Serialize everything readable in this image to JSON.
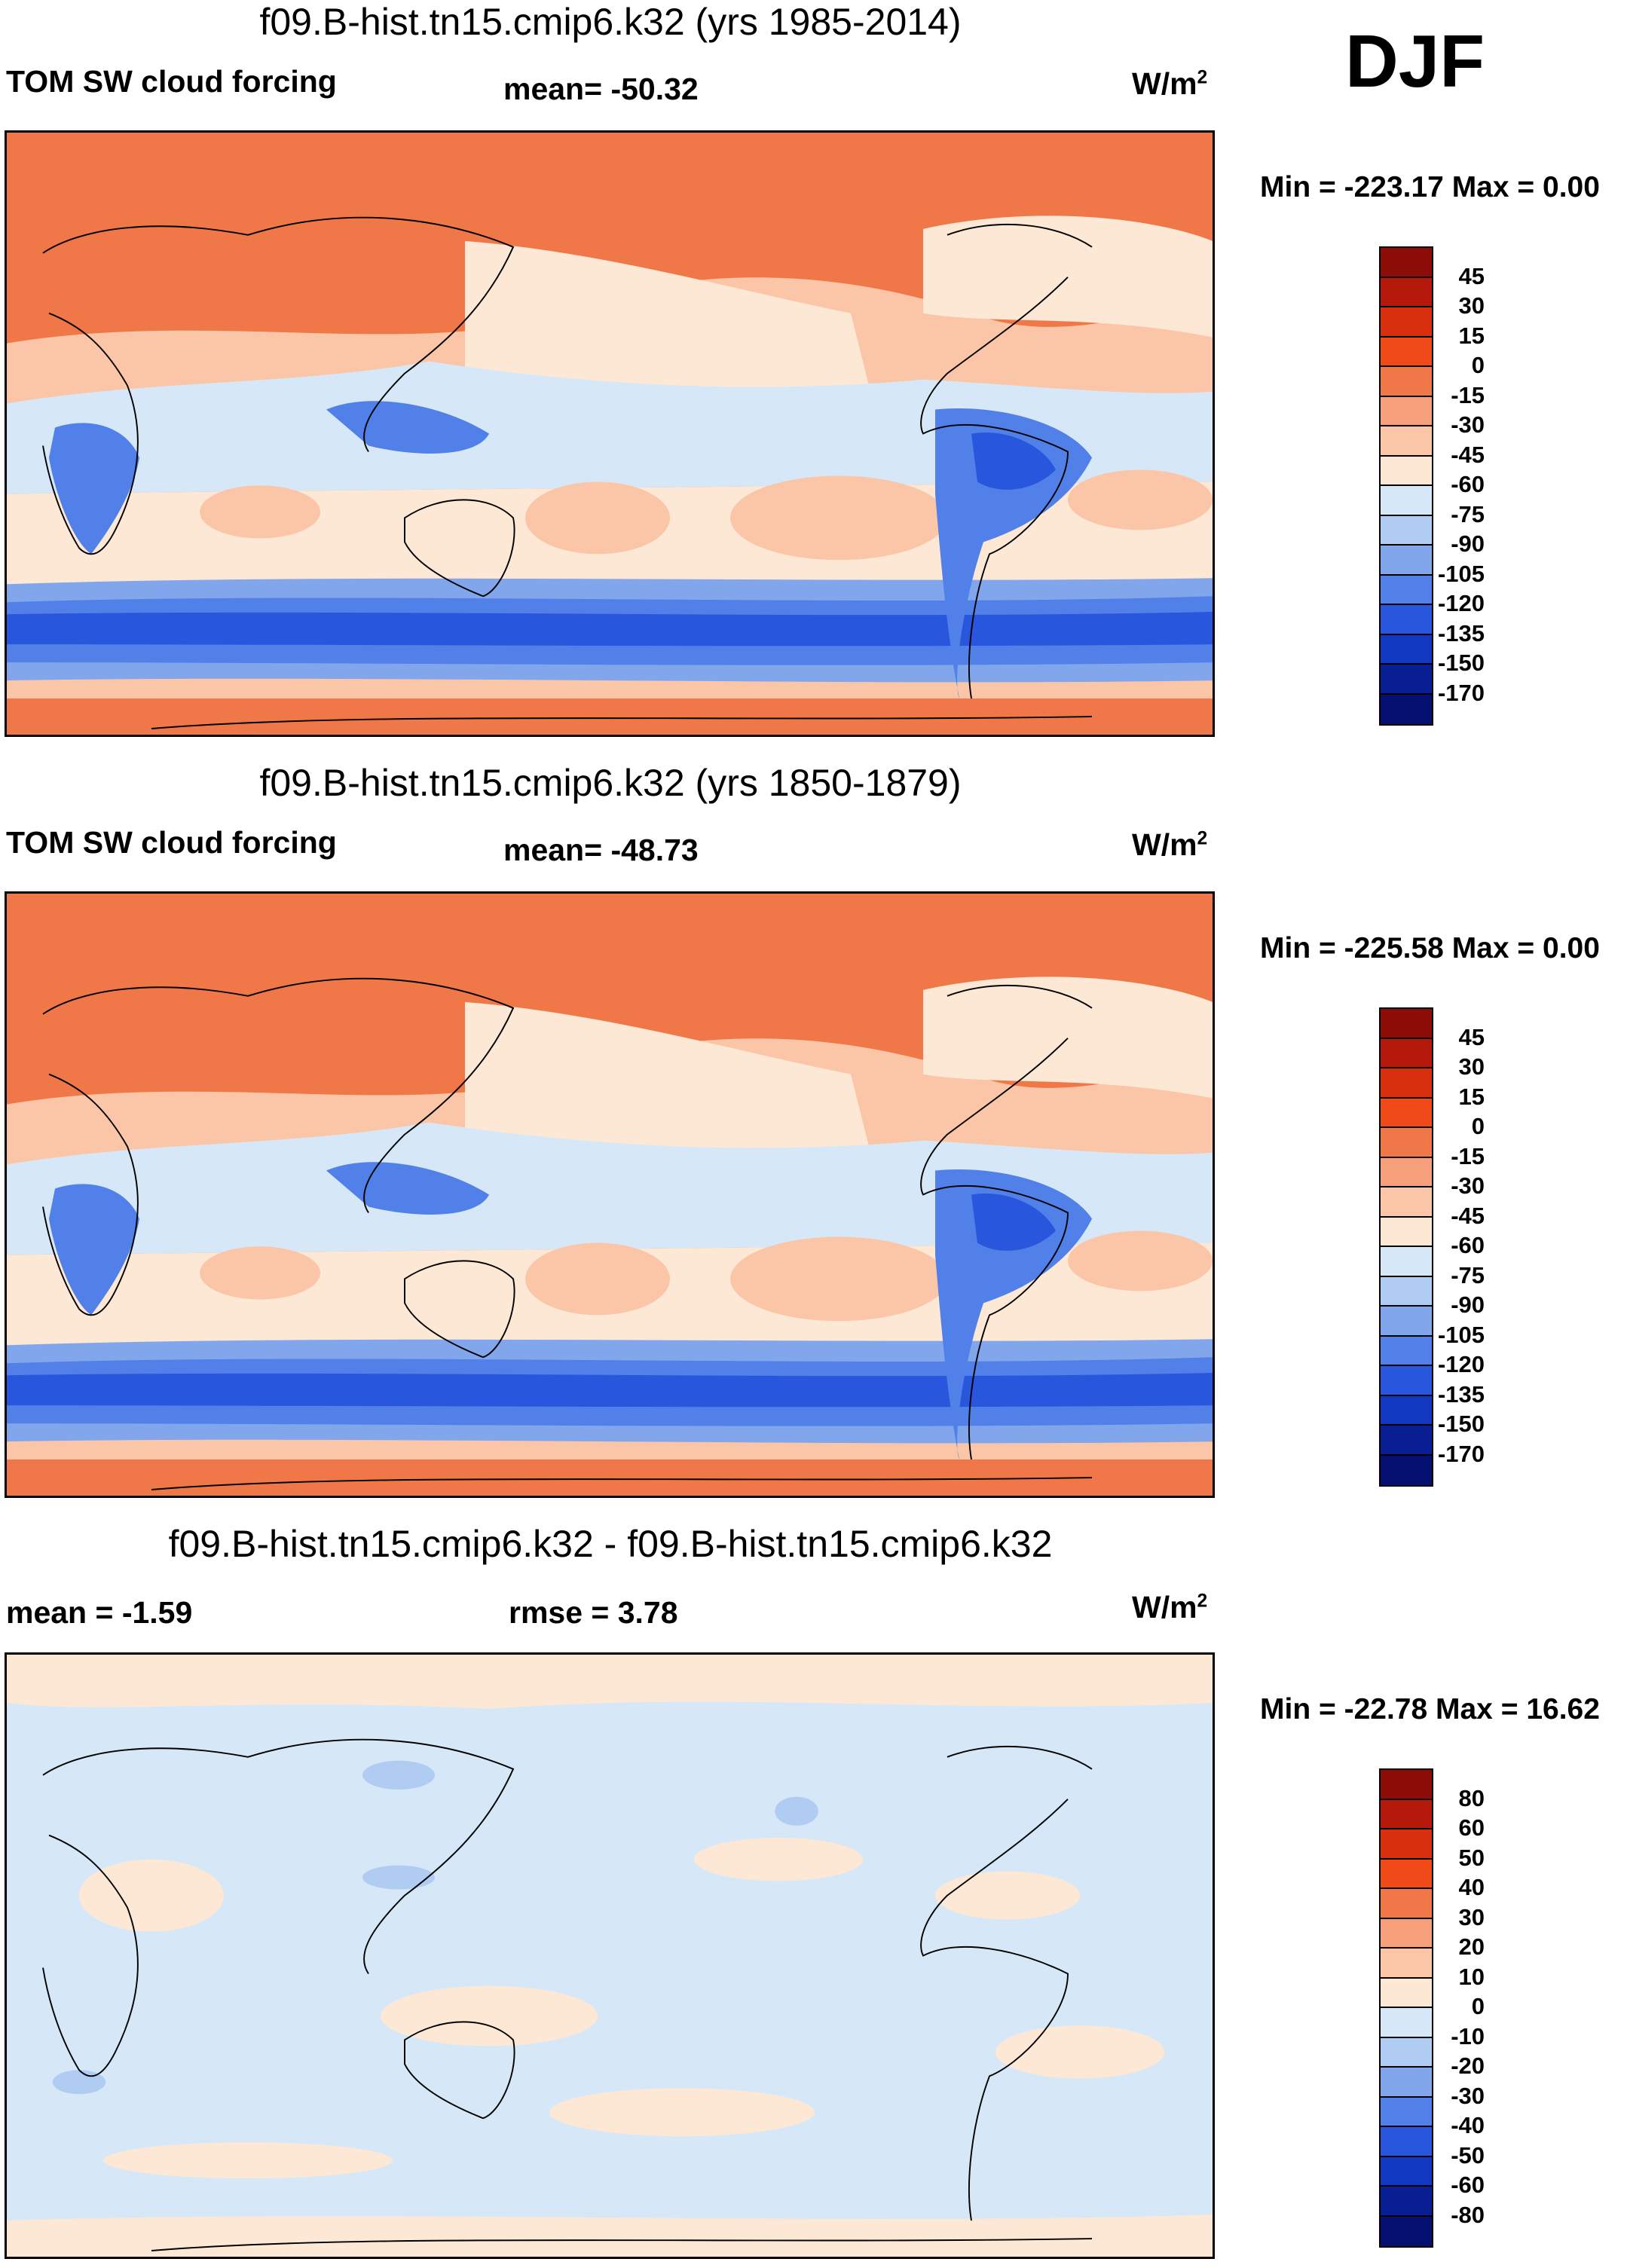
{
  "season": "DJF",
  "panels": [
    {
      "title": "f09.B-hist.tn15.cmip6.k32 (yrs 1985-2014)",
      "variable": "TOM SW cloud forcing",
      "stat": "mean= -50.32",
      "units": "W/m",
      "units_sup": "2",
      "minmax": "Min = -223.17 Max =   0.00",
      "colorbar": {
        "levels": [
          "45",
          "30",
          "15",
          "0",
          "-15",
          "-30",
          "-45",
          "-60",
          "-75",
          "-90",
          "-105",
          "-120",
          "-135",
          "-150",
          "-170"
        ],
        "colors": [
          "#8c0c08",
          "#b4190c",
          "#d8300e",
          "#f04a18",
          "#f07848",
          "#f5a07a",
          "#fbc6a8",
          "#fde8d6",
          "#d6e8f8",
          "#b0ccf2",
          "#82a6ec",
          "#5080e8",
          "#2856dc",
          "#1038c0",
          "#0a1e94",
          "#040f70"
        ]
      }
    },
    {
      "title": "f09.B-hist.tn15.cmip6.k32 (yrs 1850-1879)",
      "variable": "TOM SW cloud forcing",
      "stat": "mean= -48.73",
      "units": "W/m",
      "units_sup": "2",
      "minmax": "Min = -225.58 Max =   0.00",
      "colorbar": {
        "levels": [
          "45",
          "30",
          "15",
          "0",
          "-15",
          "-30",
          "-45",
          "-60",
          "-75",
          "-90",
          "-105",
          "-120",
          "-135",
          "-150",
          "-170"
        ],
        "colors": [
          "#8c0c08",
          "#b4190c",
          "#d8300e",
          "#f04a18",
          "#f07848",
          "#f5a07a",
          "#fbc6a8",
          "#fde8d6",
          "#d6e8f8",
          "#b0ccf2",
          "#82a6ec",
          "#5080e8",
          "#2856dc",
          "#1038c0",
          "#0a1e94",
          "#040f70"
        ]
      }
    },
    {
      "title": "f09.B-hist.tn15.cmip6.k32 - f09.B-hist.tn15.cmip6.k32",
      "stat_left": "mean =  -1.59",
      "stat": "rmse =   3.78",
      "units": "W/m",
      "units_sup": "2",
      "minmax": "Min = -22.78 Max =  16.62",
      "colorbar": {
        "levels": [
          "80",
          "60",
          "50",
          "40",
          "30",
          "20",
          "10",
          "0",
          "-10",
          "-20",
          "-30",
          "-40",
          "-50",
          "-60",
          "-80"
        ],
        "colors": [
          "#8c0c08",
          "#b4190c",
          "#d8300e",
          "#f04a18",
          "#f07848",
          "#f5a07a",
          "#fbc6a8",
          "#fde8d6",
          "#d6e8f8",
          "#b0ccf2",
          "#82a6ec",
          "#5080e8",
          "#2856dc",
          "#1038c0",
          "#0a1e94",
          "#040f70"
        ]
      }
    }
  ]
}
